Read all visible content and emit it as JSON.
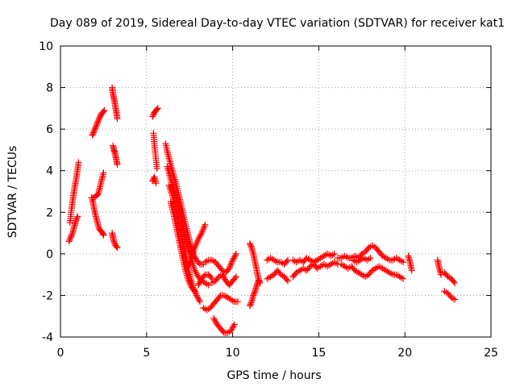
{
  "chart_data": {
    "type": "scatter",
    "title": "Day 089 of 2019, Sidereal Day-to-day VTEC variation (SDTVAR) for receiver kat1",
    "xlabel": "GPS time / hours",
    "ylabel": "SDTVAR / TECUs",
    "xlim": [
      0,
      25
    ],
    "ylim": [
      -4,
      10
    ],
    "xticks": [
      0,
      5,
      10,
      15,
      20,
      25
    ],
    "yticks": [
      -4,
      -2,
      0,
      2,
      4,
      6,
      8,
      10
    ],
    "xtick_labels": [
      "0",
      "5",
      "10",
      "15",
      "20",
      "25"
    ],
    "ytick_labels": [
      "-4",
      "-2",
      "0",
      "2",
      "4",
      "6",
      "8",
      "10"
    ],
    "grid": true,
    "marker": "+",
    "color": "#ff0000",
    "series": [
      {
        "name": "s1",
        "x": [
          0.55,
          0.65,
          0.75,
          0.85,
          0.95,
          1.05
        ],
        "y": [
          1.5,
          2.2,
          2.8,
          3.3,
          3.8,
          4.4
        ]
      },
      {
        "name": "s2",
        "x": [
          0.5,
          0.6,
          0.7,
          0.8,
          0.9,
          1.0
        ],
        "y": [
          0.6,
          0.8,
          1.0,
          1.3,
          1.6,
          1.8
        ]
      },
      {
        "name": "s3",
        "x": [
          1.85,
          1.95,
          2.05,
          2.15,
          2.25,
          2.35,
          2.45,
          2.55
        ],
        "y": [
          5.7,
          5.9,
          6.1,
          6.3,
          6.5,
          6.7,
          6.8,
          6.9
        ]
      },
      {
        "name": "s4",
        "x": [
          1.8,
          1.95,
          2.1,
          2.2,
          2.35,
          2.5
        ],
        "y": [
          2.7,
          2.7,
          2.8,
          2.9,
          3.4,
          3.9
        ]
      },
      {
        "name": "s5",
        "x": [
          1.85,
          1.95,
          2.05,
          2.15,
          2.25,
          2.35,
          2.45,
          2.5
        ],
        "y": [
          2.6,
          2.2,
          1.8,
          1.5,
          1.2,
          1.1,
          1.0,
          0.9
        ]
      },
      {
        "name": "s6",
        "x": [
          3.0,
          3.05,
          3.1,
          3.15,
          3.2,
          3.25,
          3.3
        ],
        "y": [
          8.0,
          7.7,
          7.5,
          7.3,
          7.0,
          6.8,
          6.5
        ]
      },
      {
        "name": "s7",
        "x": [
          3.05,
          3.1,
          3.15,
          3.2,
          3.25,
          3.3
        ],
        "y": [
          5.2,
          5.0,
          4.9,
          4.7,
          4.5,
          4.3
        ]
      },
      {
        "name": "s8",
        "x": [
          3.0,
          3.05,
          3.1,
          3.2,
          3.3
        ],
        "y": [
          1.0,
          0.8,
          0.6,
          0.4,
          0.3
        ]
      },
      {
        "name": "s9",
        "x": [
          5.35,
          5.45,
          5.55,
          5.65
        ],
        "y": [
          6.6,
          6.8,
          6.9,
          7.0
        ]
      },
      {
        "name": "s10",
        "x": [
          5.4,
          5.45,
          5.5,
          5.55,
          5.6
        ],
        "y": [
          5.8,
          5.3,
          4.9,
          4.5,
          4.1
        ]
      },
      {
        "name": "s11",
        "x": [
          5.35,
          5.45,
          5.55
        ],
        "y": [
          3.5,
          3.7,
          3.4
        ]
      },
      {
        "name": "s12",
        "x": [
          6.1,
          6.3,
          6.5,
          6.7,
          6.9,
          7.1,
          7.3,
          7.5,
          7.7,
          7.9,
          8.1,
          8.3
        ],
        "y": [
          5.3,
          4.6,
          4.0,
          3.4,
          2.7,
          2.0,
          1.3,
          0.6,
          0.0,
          -0.3,
          -0.5,
          -0.5
        ]
      },
      {
        "name": "s13",
        "x": [
          8.4,
          8.6,
          8.8,
          9.0,
          9.2,
          9.4,
          9.6,
          9.8,
          10.0,
          10.2
        ],
        "y": [
          -0.4,
          -0.3,
          -0.3,
          -0.4,
          -0.6,
          -0.8,
          -0.9,
          -0.7,
          -0.3,
          0.0
        ]
      },
      {
        "name": "s14",
        "x": [
          6.2,
          6.4,
          6.6,
          6.8,
          7.0,
          7.2,
          7.4,
          7.6,
          7.8,
          8.0,
          8.2,
          8.4,
          8.6
        ],
        "y": [
          4.2,
          3.6,
          3.0,
          2.4,
          1.7,
          1.0,
          0.3,
          -0.3,
          -0.8,
          -1.1,
          -1.3,
          -1.4,
          -1.5
        ]
      },
      {
        "name": "s15",
        "x": [
          8.8,
          9.0,
          9.2,
          9.4,
          9.6,
          9.8,
          10.0,
          10.2
        ],
        "y": [
          -1.4,
          -1.3,
          -1.1,
          -1.0,
          -1.3,
          -1.5,
          -1.3,
          -1.1
        ]
      },
      {
        "name": "s16",
        "x": [
          6.3,
          6.5,
          6.7,
          6.9,
          7.1,
          7.3,
          7.5,
          7.7,
          7.9,
          8.1
        ],
        "y": [
          3.3,
          2.8,
          2.2,
          1.4,
          0.6,
          -0.2,
          -1.0,
          -1.6,
          -2.0,
          -2.3
        ]
      },
      {
        "name": "s17",
        "x": [
          8.3,
          8.5,
          8.7,
          8.9,
          9.1,
          9.3,
          9.5,
          9.7,
          9.9,
          10.1,
          10.3
        ],
        "y": [
          -2.6,
          -2.7,
          -2.6,
          -2.4,
          -2.2,
          -2.0,
          -2.0,
          -2.1,
          -2.2,
          -2.3,
          -2.3
        ]
      },
      {
        "name": "s18",
        "x": [
          6.4,
          6.6,
          6.8,
          7.0,
          7.2,
          7.4,
          7.6,
          7.8
        ],
        "y": [
          2.5,
          1.8,
          1.0,
          0.2,
          -0.6,
          -1.2,
          -1.6,
          -1.8
        ]
      },
      {
        "name": "s19",
        "x": [
          8.0,
          8.2,
          8.4,
          8.6,
          8.8
        ],
        "y": [
          -1.5,
          -1.2,
          -1.0,
          -1.0,
          -1.2
        ]
      },
      {
        "name": "s20",
        "x": [
          7.4,
          7.6,
          7.8,
          8.0,
          8.2,
          8.4
        ],
        "y": [
          -0.6,
          -0.2,
          0.3,
          0.7,
          1.0,
          1.4
        ]
      },
      {
        "name": "s21",
        "x": [
          8.9,
          9.1,
          9.3,
          9.5,
          9.7,
          9.9,
          10.1
        ],
        "y": [
          -3.1,
          -3.4,
          -3.6,
          -3.8,
          -3.8,
          -3.7,
          -3.4
        ]
      },
      {
        "name": "s22",
        "x": [
          11.0,
          11.1,
          11.2,
          11.3,
          11.4,
          11.5,
          11.6
        ],
        "y": [
          0.5,
          0.3,
          0.0,
          -0.4,
          -0.8,
          -1.2,
          -1.4
        ]
      },
      {
        "name": "s23",
        "x": [
          11.0,
          11.1,
          11.2,
          11.3,
          11.4,
          11.5
        ],
        "y": [
          -2.5,
          -2.3,
          -2.0,
          -1.8,
          -1.5,
          -1.3
        ]
      },
      {
        "name": "s24",
        "x": [
          12.0,
          12.2,
          12.4,
          12.6,
          12.8,
          13.0,
          13.2
        ],
        "y": [
          -0.3,
          -0.2,
          -0.3,
          -0.4,
          -0.4,
          -0.5,
          -0.3
        ]
      },
      {
        "name": "s25",
        "x": [
          12.0,
          12.2,
          12.4,
          12.6,
          12.8,
          13.0,
          13.2
        ],
        "y": [
          -1.2,
          -1.1,
          -1.0,
          -0.8,
          -1.0,
          -1.1,
          -1.3
        ]
      },
      {
        "name": "s26",
        "x": [
          13.5,
          13.7,
          13.9,
          14.1,
          14.3,
          14.5,
          14.7,
          14.9,
          15.1,
          15.3,
          15.5,
          15.7,
          15.9
        ],
        "y": [
          -0.3,
          -0.4,
          -0.3,
          -0.4,
          -0.2,
          -0.3,
          -0.4,
          -0.3,
          -0.2,
          -0.1,
          0.0,
          -0.1,
          0.0
        ]
      },
      {
        "name": "s27",
        "x": [
          13.5,
          13.7,
          13.9,
          14.1,
          14.3,
          14.5,
          14.7,
          14.9,
          15.1,
          15.3,
          15.5,
          15.7,
          15.9,
          16.1
        ],
        "y": [
          -1.1,
          -0.9,
          -0.8,
          -0.7,
          -0.8,
          -0.6,
          -0.5,
          -0.7,
          -0.6,
          -0.5,
          -0.6,
          -0.5,
          -0.4,
          -0.5
        ]
      },
      {
        "name": "s28",
        "x": [
          16.1,
          16.3,
          16.5,
          16.7,
          16.9,
          17.1,
          17.3,
          17.5,
          17.7,
          17.9,
          18.1,
          18.3,
          18.5,
          18.7,
          18.9,
          19.1,
          19.3,
          19.5,
          19.7,
          19.9
        ],
        "y": [
          -0.2,
          -0.2,
          -0.1,
          -0.2,
          -0.2,
          -0.1,
          -0.2,
          0.0,
          0.1,
          0.3,
          0.4,
          0.3,
          0.1,
          -0.1,
          -0.2,
          -0.3,
          -0.3,
          -0.2,
          -0.3,
          -0.4
        ]
      },
      {
        "name": "s29",
        "x": [
          16.3,
          16.5,
          16.7,
          16.9,
          17.1,
          17.3,
          17.5,
          17.7,
          17.9,
          18.1,
          18.3,
          18.5,
          18.7,
          18.9,
          19.1,
          19.3,
          19.5,
          19.7,
          19.9
        ],
        "y": [
          -0.5,
          -0.6,
          -0.7,
          -0.6,
          -0.8,
          -0.9,
          -1.0,
          -1.1,
          -1.0,
          -0.8,
          -0.7,
          -0.6,
          -0.7,
          -0.8,
          -0.9,
          -1.0,
          -1.0,
          -1.1,
          -1.2
        ]
      },
      {
        "name": "s30",
        "x": [
          17.0,
          17.2,
          17.4,
          17.6,
          17.8,
          18.0
        ],
        "y": [
          -0.3,
          -0.4,
          -0.3,
          -0.2,
          -0.3,
          -0.2
        ]
      },
      {
        "name": "s31",
        "x": [
          20.2,
          20.3,
          20.4
        ],
        "y": [
          -0.1,
          -0.4,
          -0.8
        ]
      },
      {
        "name": "s32",
        "x": [
          21.9,
          22.0,
          22.1
        ],
        "y": [
          -0.3,
          -0.7,
          -1.0
        ]
      },
      {
        "name": "s33",
        "x": [
          22.3,
          22.5,
          22.7,
          22.9
        ],
        "y": [
          -0.9,
          -1.1,
          -1.2,
          -1.4
        ]
      },
      {
        "name": "s34",
        "x": [
          22.3,
          22.5,
          22.7,
          22.9
        ],
        "y": [
          -1.8,
          -1.9,
          -2.1,
          -2.2
        ]
      }
    ]
  }
}
